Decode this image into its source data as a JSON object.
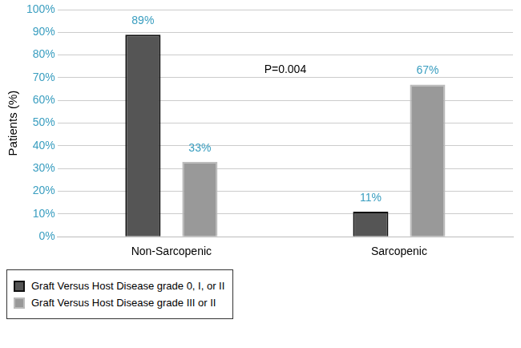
{
  "chart_data": {
    "type": "bar",
    "categories": [
      "Non-Sarcopenic",
      "Sarcopenic"
    ],
    "series": [
      {
        "name": "Graft Versus Host Disease grade 0, I, or II",
        "color": "#555555",
        "values": [
          89,
          11
        ],
        "value_labels": [
          "89%",
          "11%"
        ]
      },
      {
        "name": "Graft Versus Host Disease grade III or II",
        "color": "#999999",
        "values": [
          33,
          67
        ],
        "value_labels": [
          "33%",
          "67%"
        ]
      }
    ],
    "y_label": "Patients (%)",
    "annotations": [
      "P=0.004"
    ],
    "ylim": [
      0,
      100
    ],
    "yticks": [
      {
        "value": 0,
        "label": "0%"
      },
      {
        "value": 10,
        "label": "10%"
      },
      {
        "value": 20,
        "label": "20%"
      },
      {
        "value": 30,
        "label": "30%"
      },
      {
        "value": 40,
        "label": "40%"
      },
      {
        "value": 50,
        "label": "50%"
      },
      {
        "value": 60,
        "label": "60%"
      },
      {
        "value": 70,
        "label": "70%"
      },
      {
        "value": 80,
        "label": "80%"
      },
      {
        "value": 90,
        "label": "90%"
      },
      {
        "value": 100,
        "label": "100%"
      }
    ],
    "grid": true,
    "data_labels": true,
    "legend": "bottom-left"
  }
}
